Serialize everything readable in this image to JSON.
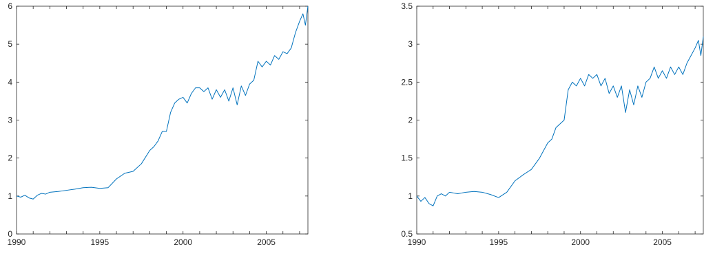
{
  "colors": {
    "series": "#0072bd",
    "axis": "#262626",
    "background": "#ffffff"
  },
  "chart_data": [
    {
      "type": "line",
      "title": "",
      "xlabel": "",
      "ylabel": "",
      "xlim": [
        1990,
        2007.5
      ],
      "ylim": [
        0,
        6
      ],
      "grid": false,
      "x_ticks": [
        1990,
        1995,
        2000,
        2005
      ],
      "x_tick_labels": [
        "1990",
        "1995",
        "2000",
        "2005"
      ],
      "y_ticks": [
        0,
        1,
        2,
        3,
        4,
        5,
        6
      ],
      "y_tick_labels": [
        "0",
        "1",
        "2",
        "3",
        "4",
        "5",
        "6"
      ],
      "series": [
        {
          "x": [
            1990.0,
            1990.25,
            1990.5,
            1990.75,
            1991.0,
            1991.25,
            1991.5,
            1991.75,
            1992.0,
            1992.5,
            1993.0,
            1993.5,
            1994.0,
            1994.5,
            1995.0,
            1995.5,
            1996.0,
            1996.5,
            1997.0,
            1997.5,
            1998.0,
            1998.25,
            1998.5,
            1998.75,
            1999.0,
            1999.25,
            1999.5,
            1999.75,
            2000.0,
            2000.25,
            2000.5,
            2000.75,
            2001.0,
            2001.25,
            2001.5,
            2001.75,
            2002.0,
            2002.25,
            2002.5,
            2002.75,
            2003.0,
            2003.25,
            2003.5,
            2003.75,
            2004.0,
            2004.25,
            2004.5,
            2004.75,
            2005.0,
            2005.25,
            2005.5,
            2005.75,
            2006.0,
            2006.25,
            2006.5,
            2006.75,
            2007.0,
            2007.2,
            2007.35,
            2007.5
          ],
          "y": [
            1.0,
            0.97,
            1.02,
            0.95,
            0.92,
            1.02,
            1.07,
            1.05,
            1.1,
            1.12,
            1.15,
            1.18,
            1.22,
            1.23,
            1.2,
            1.22,
            1.45,
            1.6,
            1.65,
            1.85,
            2.2,
            2.3,
            2.45,
            2.7,
            2.7,
            3.2,
            3.45,
            3.55,
            3.6,
            3.45,
            3.7,
            3.85,
            3.85,
            3.75,
            3.85,
            3.55,
            3.8,
            3.6,
            3.8,
            3.5,
            3.85,
            3.4,
            3.9,
            3.65,
            3.95,
            4.05,
            4.55,
            4.4,
            4.55,
            4.45,
            4.7,
            4.6,
            4.8,
            4.75,
            4.9,
            5.3,
            5.6,
            5.8,
            5.5,
            6.0
          ]
        }
      ]
    },
    {
      "type": "line",
      "title": "",
      "xlabel": "",
      "ylabel": "",
      "xlim": [
        1990,
        2007.5
      ],
      "ylim": [
        0.5,
        3.5
      ],
      "grid": false,
      "x_ticks": [
        1990,
        1995,
        2000,
        2005
      ],
      "x_tick_labels": [
        "1990",
        "1995",
        "2000",
        "2005"
      ],
      "y_ticks": [
        0.5,
        1,
        1.5,
        2,
        2.5,
        3,
        3.5
      ],
      "y_tick_labels": [
        "0.5",
        "1",
        "1.5",
        "2",
        "2.5",
        "3",
        "3.5"
      ],
      "series": [
        {
          "x": [
            1990.0,
            1990.25,
            1990.5,
            1990.75,
            1991.0,
            1991.25,
            1991.5,
            1991.75,
            1992.0,
            1992.5,
            1993.0,
            1993.5,
            1994.0,
            1994.5,
            1995.0,
            1995.5,
            1996.0,
            1996.5,
            1997.0,
            1997.5,
            1998.0,
            1998.25,
            1998.5,
            1998.75,
            1999.0,
            1999.25,
            1999.5,
            1999.75,
            2000.0,
            2000.25,
            2000.5,
            2000.75,
            2001.0,
            2001.25,
            2001.5,
            2001.75,
            2002.0,
            2002.25,
            2002.5,
            2002.75,
            2003.0,
            2003.25,
            2003.5,
            2003.75,
            2004.0,
            2004.25,
            2004.5,
            2004.75,
            2005.0,
            2005.25,
            2005.5,
            2005.75,
            2006.0,
            2006.25,
            2006.5,
            2006.75,
            2007.0,
            2007.2,
            2007.35,
            2007.5
          ],
          "y": [
            1.0,
            0.93,
            0.98,
            0.9,
            0.87,
            1.0,
            1.03,
            1.0,
            1.05,
            1.03,
            1.05,
            1.06,
            1.05,
            1.02,
            0.98,
            1.05,
            1.2,
            1.28,
            1.35,
            1.5,
            1.7,
            1.75,
            1.9,
            1.95,
            2.0,
            2.4,
            2.5,
            2.45,
            2.55,
            2.45,
            2.6,
            2.55,
            2.6,
            2.45,
            2.55,
            2.35,
            2.45,
            2.3,
            2.45,
            2.1,
            2.4,
            2.2,
            2.45,
            2.3,
            2.5,
            2.55,
            2.7,
            2.55,
            2.65,
            2.55,
            2.7,
            2.6,
            2.7,
            2.6,
            2.75,
            2.85,
            2.95,
            3.05,
            2.85,
            3.1
          ]
        }
      ]
    }
  ]
}
